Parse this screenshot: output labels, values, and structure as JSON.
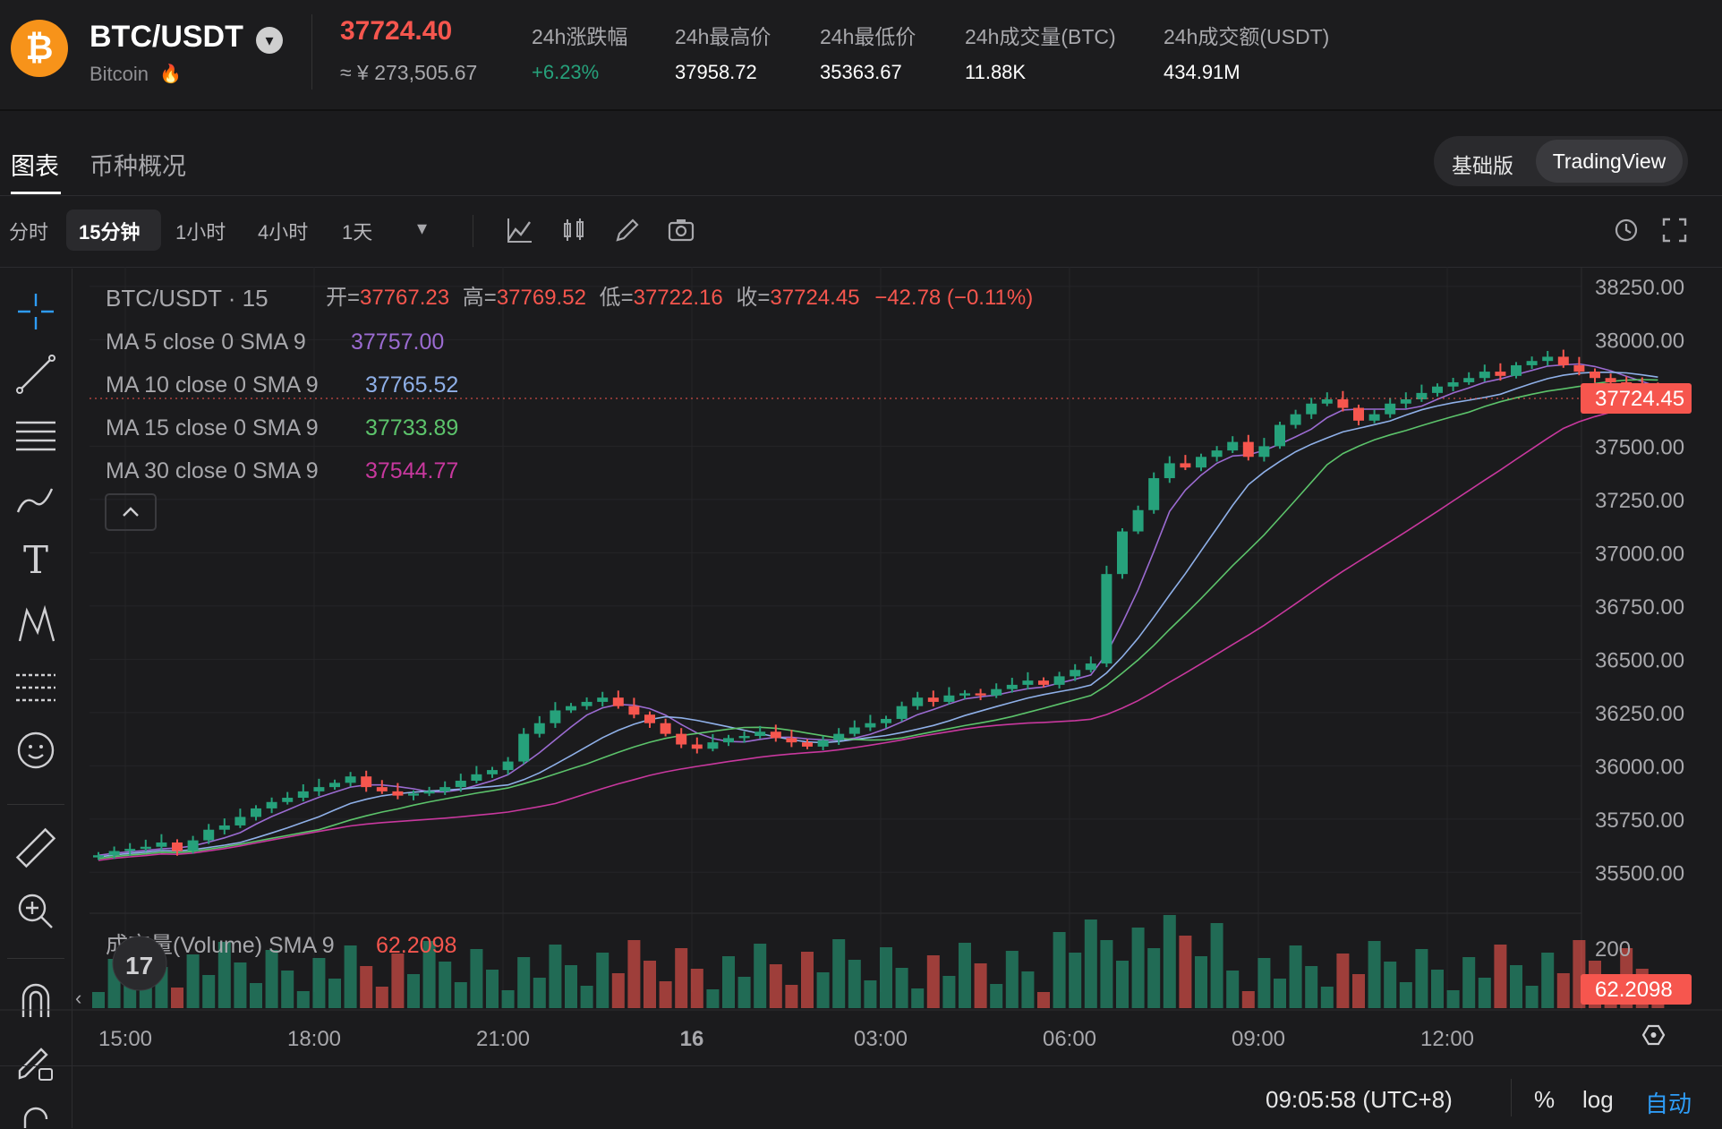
{
  "header": {
    "pair": "BTC/USDT",
    "coin_name": "Bitcoin",
    "last_price": "37724.40",
    "approx_cny": "≈ ¥ 273,505.67",
    "stats": [
      {
        "label": "24h涨跌幅",
        "value": "+6.23%"
      },
      {
        "label": "24h最高价",
        "value": "37958.72"
      },
      {
        "label": "24h最低价",
        "value": "35363.67"
      },
      {
        "label": "24h成交量(BTC)",
        "value": "11.88K"
      },
      {
        "label": "24h成交额(USDT)",
        "value": "434.91M"
      }
    ]
  },
  "tabs": {
    "chart": "图表",
    "overview": "币种概况"
  },
  "mode": {
    "basic": "基础版",
    "tradingview": "TradingView"
  },
  "intervals": [
    "分时",
    "15分钟",
    "1小时",
    "4小时",
    "1天"
  ],
  "legend": {
    "symbol": "BTC/USDT · 15",
    "open_label": "开=",
    "open": "37767.23",
    "high_label": "高=",
    "high": "37769.52",
    "low_label": "低=",
    "low": "37722.16",
    "close_label": "收=",
    "close": "37724.45",
    "change": "−42.78 (−0.11%)",
    "ma": [
      {
        "label": "MA 5 close 0 SMA 9",
        "value": "37757.00",
        "color": "#9b6bd1"
      },
      {
        "label": "MA 10 close 0 SMA 9",
        "value": "37765.52",
        "color": "#8fb0e8"
      },
      {
        "label": "MA 15 close 0 SMA 9",
        "value": "37733.89",
        "color": "#5cc36b"
      },
      {
        "label": "MA 30 close 0 SMA 9",
        "value": "37544.77",
        "color": "#c8389e"
      }
    ],
    "volume_label": "成交量(Volume) SMA 9",
    "volume_value": "62.2098"
  },
  "price_axis": {
    "ticks": [
      "38250.00",
      "38000.00",
      "37500.00",
      "37250.00",
      "37000.00",
      "36750.00",
      "36500.00",
      "36250.00",
      "36000.00",
      "35750.00",
      "35500.00"
    ],
    "current_label": "37724.45",
    "volume_ticks": [
      "200"
    ],
    "volume_current_label": "62.2098"
  },
  "time_axis": {
    "ticks": [
      "15:00",
      "18:00",
      "21:00",
      "16",
      "03:00",
      "06:00",
      "09:00",
      "12:00"
    ]
  },
  "bottom": {
    "clock": "09:05:58 (UTC+8)",
    "percent": "%",
    "log": "log",
    "auto": "自动"
  },
  "colors": {
    "up": "#26a17b",
    "down": "#f6564e",
    "accent": "#2e7cf6"
  },
  "chart_data": {
    "type": "candlestick",
    "title": "BTC/USDT · 15",
    "interval": "15m",
    "ylim": [
      35350,
      38300
    ],
    "x_ticks": [
      "15:00",
      "18:00",
      "21:00",
      "16",
      "03:00",
      "06:00",
      "09:00",
      "12:00"
    ],
    "candles_note": "approx closes sampled every 15 min (index 0 ≈ 14:30)",
    "close": [
      35580,
      35600,
      35610,
      35620,
      35640,
      35600,
      35650,
      35700,
      35720,
      35760,
      35800,
      35830,
      35850,
      35880,
      35900,
      35920,
      35950,
      35900,
      35880,
      35860,
      35870,
      35880,
      35900,
      35930,
      35960,
      35980,
      36020,
      36150,
      36200,
      36260,
      36280,
      36300,
      36320,
      36280,
      36240,
      36200,
      36150,
      36100,
      36080,
      36110,
      36130,
      36140,
      36160,
      36130,
      36110,
      36090,
      36120,
      36150,
      36180,
      36200,
      36220,
      36280,
      36320,
      36300,
      36330,
      36340,
      36330,
      36360,
      36380,
      36400,
      36380,
      36420,
      36450,
      36480,
      36900,
      37100,
      37200,
      37350,
      37420,
      37400,
      37450,
      37480,
      37520,
      37450,
      37500,
      37600,
      37650,
      37700,
      37720,
      37680,
      37620,
      37650,
      37700,
      37720,
      37750,
      37780,
      37800,
      37820,
      37850,
      37830,
      37880,
      37900,
      37920,
      37880,
      37850,
      37820,
      37800,
      37790,
      37760,
      37724
    ],
    "volume_sma": 62.2098,
    "ma_last": {
      "MA5": 37757.0,
      "MA10": 37765.52,
      "MA15": 37733.89,
      "MA30": 37544.77
    }
  }
}
